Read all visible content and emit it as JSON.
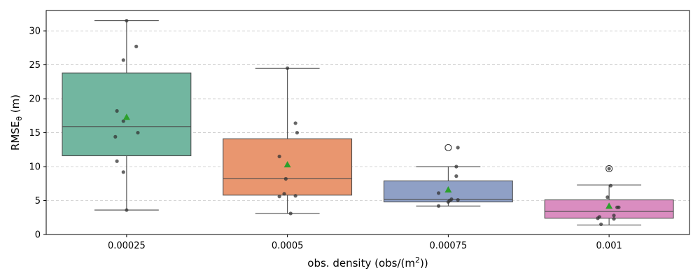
{
  "chart_data": {
    "type": "box",
    "xlabel": "obs. density (obs/(m",
    "xlabel_sup": "2",
    "xlabel_end": "))",
    "ylabel": "RMSE",
    "ylabel_sub": "θ",
    "ylabel_end": " (m)",
    "ylim": [
      0,
      33
    ],
    "yticks": [
      0,
      5,
      10,
      15,
      20,
      25,
      30
    ],
    "grid": "y",
    "categories": [
      "0.00025",
      "0.0005",
      "0.00075",
      "0.001"
    ],
    "colors": [
      "#72b6a0",
      "#e9966f",
      "#8fa0c6",
      "#da8dc0"
    ],
    "mean_color": "#2ca02c",
    "boxes": [
      {
        "q1": 11.6,
        "median": 15.9,
        "q3": 23.8,
        "whisker_low": 3.6,
        "whisker_high": 31.5,
        "mean": 17.3,
        "outliers": []
      },
      {
        "q1": 5.8,
        "median": 8.2,
        "q3": 14.1,
        "whisker_low": 3.1,
        "whisker_high": 24.5,
        "mean": 10.3,
        "outliers": []
      },
      {
        "q1": 4.8,
        "median": 5.2,
        "q3": 7.9,
        "whisker_low": 4.2,
        "whisker_high": 10.0,
        "mean": 6.6,
        "outliers": [
          12.8
        ]
      },
      {
        "q1": 2.4,
        "median": 3.4,
        "q3": 5.1,
        "whisker_low": 1.4,
        "whisker_high": 7.3,
        "mean": 4.2,
        "outliers": [
          9.7
        ]
      }
    ],
    "points": [
      [
        {
          "dx": 0.0,
          "y": 31.5
        },
        {
          "dx": 0.06,
          "y": 27.7
        },
        {
          "dx": -0.02,
          "y": 25.7
        },
        {
          "dx": -0.06,
          "y": 18.2
        },
        {
          "dx": -0.02,
          "y": 16.7
        },
        {
          "dx": 0.07,
          "y": 15.0
        },
        {
          "dx": -0.07,
          "y": 14.4
        },
        {
          "dx": -0.06,
          "y": 10.8
        },
        {
          "dx": -0.02,
          "y": 9.2
        },
        {
          "dx": 0.0,
          "y": 3.6
        }
      ],
      [
        {
          "dx": 0.0,
          "y": 24.5
        },
        {
          "dx": 0.05,
          "y": 16.4
        },
        {
          "dx": 0.06,
          "y": 15.0
        },
        {
          "dx": -0.05,
          "y": 11.5
        },
        {
          "dx": -0.01,
          "y": 8.2
        },
        {
          "dx": -0.02,
          "y": 6.0
        },
        {
          "dx": -0.05,
          "y": 5.6
        },
        {
          "dx": 0.05,
          "y": 5.7
        },
        {
          "dx": 0.02,
          "y": 3.1
        }
      ],
      [
        {
          "dx": 0.06,
          "y": 12.8
        },
        {
          "dx": 0.05,
          "y": 10.0
        },
        {
          "dx": 0.05,
          "y": 8.6
        },
        {
          "dx": -0.06,
          "y": 6.1
        },
        {
          "dx": 0.02,
          "y": 5.2
        },
        {
          "dx": 0.01,
          "y": 5.0
        },
        {
          "dx": 0.0,
          "y": 4.8
        },
        {
          "dx": 0.06,
          "y": 5.1
        },
        {
          "dx": -0.06,
          "y": 4.2
        }
      ],
      [
        {
          "dx": 0.0,
          "y": 9.7
        },
        {
          "dx": 0.01,
          "y": 7.2
        },
        {
          "dx": -0.01,
          "y": 5.5
        },
        {
          "dx": 0.05,
          "y": 4.0
        },
        {
          "dx": 0.06,
          "y": 4.0
        },
        {
          "dx": 0.03,
          "y": 2.8
        },
        {
          "dx": 0.03,
          "y": 2.3
        },
        {
          "dx": -0.07,
          "y": 2.4
        },
        {
          "dx": -0.06,
          "y": 2.6
        },
        {
          "dx": -0.05,
          "y": 1.5
        }
      ]
    ]
  }
}
